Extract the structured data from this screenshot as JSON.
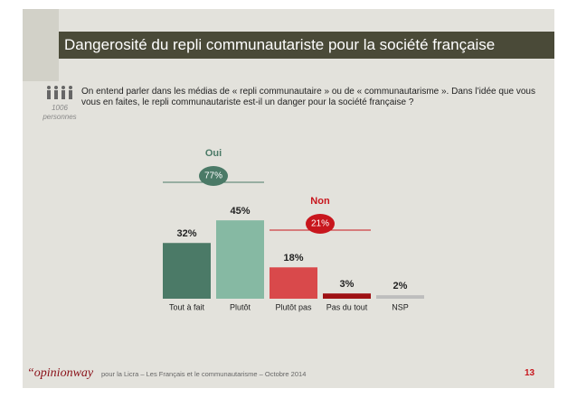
{
  "header": {
    "title": "Dangerosité du repli communautariste pour la société française"
  },
  "sample": {
    "count": "1006",
    "unit": "personnes"
  },
  "question": "On entend parler dans les médias de « repli communautaire » ou de « communautarisme ». Dans l’idée que vous vous en faites, le repli communautariste est-il un danger pour la société française ?",
  "chart_data": {
    "type": "bar",
    "categories": [
      "Tout à fait",
      "Plutôt",
      "Plutôt pas",
      "Pas du tout",
      "NSP"
    ],
    "values": [
      32,
      45,
      18,
      3,
      2
    ],
    "value_labels": [
      "32%",
      "45%",
      "18%",
      "3%",
      "2%"
    ],
    "colors": [
      "#4b7a67",
      "#86b9a3",
      "#d9494b",
      "#9e1114",
      "#bdbdbd"
    ],
    "groups": [
      {
        "name": "Oui",
        "value": 77,
        "value_label": "77%",
        "color": "#4b7a67"
      },
      {
        "name": "Non",
        "value": 21,
        "value_label": "21%",
        "color": "#c8161d"
      }
    ]
  },
  "footer": {
    "brand": "“opinionway",
    "source": "pour la Licra – Les Français et le communautarisme – Octobre 2014",
    "page": "13"
  }
}
